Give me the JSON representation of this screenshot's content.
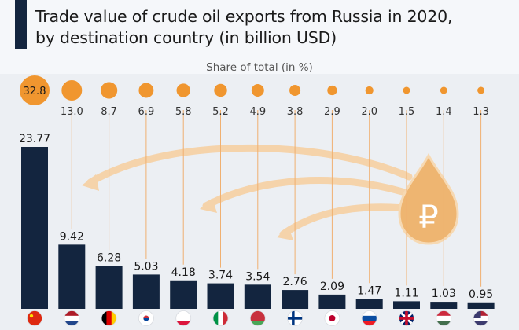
{
  "title_lines": [
    "Trade value of crude oil exports from Russia in 2020,",
    "by destination country (in billion USD)"
  ],
  "chart_data": {
    "type": "bar",
    "title": "Trade value of crude oil exports from Russia in 2020, by destination country (in billion USD)",
    "subtitle": "Share of total (in %)",
    "categories": [
      "China",
      "Netherlands",
      "Germany",
      "South Korea",
      "Poland",
      "Italy",
      "Belarus",
      "Finland",
      "Japan",
      "Slovakia",
      "United Kingdom",
      "Hungary",
      "United States"
    ],
    "values": [
      23.77,
      9.42,
      6.28,
      5.03,
      4.18,
      3.74,
      3.54,
      2.76,
      2.09,
      1.47,
      1.11,
      1.03,
      0.95
    ],
    "value_labels": [
      "23.77",
      "9.42",
      "6.28",
      "5.03",
      "4.18",
      "3.74",
      "3.54",
      "2.76",
      "2.09",
      "1.47",
      "1.11",
      "1.03",
      "0.95"
    ],
    "share_percent": [
      32.8,
      13.0,
      8.7,
      6.9,
      5.8,
      5.2,
      4.9,
      3.8,
      2.9,
      2.0,
      1.5,
      1.4,
      1.3
    ],
    "share_labels": [
      "32.8",
      "13.0",
      "8.7",
      "6.9",
      "5.8",
      "5.2",
      "4.9",
      "3.8",
      "2.9",
      "2.0",
      "1.5",
      "1.4",
      "1.3"
    ],
    "ylim": [
      0,
      25
    ],
    "grid": false,
    "colors": {
      "bar": "#13253f",
      "bubble": "#f0962f",
      "arrow": "#f5d3aa"
    }
  },
  "ruble_symbol": "₽"
}
